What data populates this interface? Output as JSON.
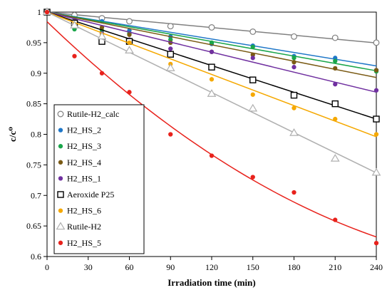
{
  "chart_data": {
    "type": "scatter",
    "xlabel": "Irradiation time (min)",
    "ylabel": "c/c⁰",
    "xlim": [
      0,
      240
    ],
    "ylim": [
      0.6,
      1.0
    ],
    "xticks": [
      "0",
      "30",
      "60",
      "90",
      "120",
      "150",
      "180",
      "210",
      "240"
    ],
    "yticks": [
      "0.6",
      "0.65",
      "0.7",
      "0.75",
      "0.8",
      "0.85",
      "0.9",
      "0.95",
      "1"
    ],
    "grid": false,
    "legend_position": "lower-left",
    "series": [
      {
        "name": "Rutile-H2_calc",
        "marker": "open-circle",
        "color": "#808080",
        "x": [
          0,
          20,
          40,
          60,
          90,
          120,
          150,
          180,
          210,
          240
        ],
        "y": [
          1.0,
          0.995,
          0.99,
          0.985,
          0.977,
          0.975,
          0.968,
          0.96,
          0.958,
          0.95
        ],
        "fit": [
          1.0,
          0.9495
        ]
      },
      {
        "name": "H2_HS_2",
        "marker": "filled-circle",
        "color": "#1f77c8",
        "x": [
          0,
          20,
          40,
          60,
          90,
          120,
          150,
          180,
          210,
          240
        ],
        "y": [
          1.0,
          0.99,
          0.985,
          0.97,
          0.96,
          0.948,
          0.945,
          0.928,
          0.925,
          0.905
        ],
        "fit": [
          1.0,
          0.912
        ]
      },
      {
        "name": "H2_HS_3",
        "marker": "filled-circle",
        "color": "#1aa64a",
        "x": [
          0,
          20,
          40,
          60,
          90,
          120,
          150,
          180,
          210,
          240
        ],
        "y": [
          1.0,
          0.972,
          0.97,
          0.965,
          0.955,
          0.95,
          0.943,
          0.925,
          0.92,
          0.903
        ],
        "fit": [
          1.0,
          0.904
        ]
      },
      {
        "name": "H2_HS_4",
        "marker": "filled-circle",
        "color": "#7a5a14",
        "x": [
          0,
          20,
          40,
          60,
          90,
          120,
          150,
          180,
          210,
          240
        ],
        "y": [
          1.0,
          0.985,
          0.975,
          0.963,
          0.95,
          0.935,
          0.93,
          0.918,
          0.908,
          0.905
        ],
        "fit": [
          1.0,
          0.893
        ]
      },
      {
        "name": "H2_HS_1",
        "marker": "filled-circle",
        "color": "#7030a0",
        "x": [
          0,
          20,
          40,
          60,
          90,
          120,
          150,
          180,
          210,
          240
        ],
        "y": [
          1.0,
          0.98,
          0.965,
          0.955,
          0.94,
          0.935,
          0.925,
          0.91,
          0.882,
          0.872
        ],
        "fit": [
          1.0,
          0.869
        ]
      },
      {
        "name": "Aeroxide P25",
        "marker": "open-square",
        "color": "#000000",
        "x": [
          0,
          20,
          40,
          60,
          90,
          120,
          150,
          180,
          210,
          240
        ],
        "y": [
          1.0,
          0.982,
          0.952,
          0.952,
          0.931,
          0.91,
          0.889,
          0.864,
          0.85,
          0.825
        ],
        "fit": [
          1.0,
          0.825
        ]
      },
      {
        "name": "H2_HS_6",
        "marker": "filled-circle",
        "color": "#f5a800",
        "x": [
          0,
          20,
          40,
          60,
          90,
          120,
          150,
          180,
          210,
          240
        ],
        "y": [
          1.0,
          0.98,
          0.963,
          0.95,
          0.915,
          0.89,
          0.865,
          0.843,
          0.825,
          0.8
        ],
        "fit": [
          1.0,
          0.796
        ]
      },
      {
        "name": "Rutile-H2",
        "marker": "open-triangle",
        "color": "#b0b0b0",
        "x": [
          0,
          20,
          40,
          60,
          90,
          120,
          150,
          180,
          210,
          240
        ],
        "y": [
          1.0,
          0.978,
          0.96,
          0.937,
          0.908,
          0.866,
          0.842,
          0.802,
          0.76,
          0.737
        ],
        "fit": [
          1.0,
          0.737
        ]
      },
      {
        "name": "H2_HS_5",
        "marker": "filled-circle",
        "color": "#e8221c",
        "x": [
          0,
          20,
          40,
          60,
          90,
          120,
          150,
          180,
          210,
          240
        ],
        "y": [
          1.0,
          0.928,
          0.9,
          0.869,
          0.8,
          0.765,
          0.73,
          0.705,
          0.66,
          0.622
        ],
        "fit_curve": true
      }
    ]
  }
}
